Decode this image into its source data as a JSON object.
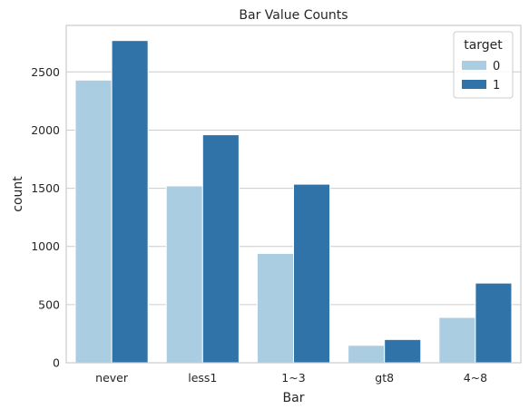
{
  "chart_data": {
    "type": "bar",
    "title": "Bar Value Counts",
    "xlabel": "Bar",
    "ylabel": "count",
    "categories": [
      "never",
      "less1",
      "1~3",
      "gt8",
      "4~8"
    ],
    "series": [
      {
        "name": "0",
        "values": [
          2430,
          1520,
          940,
          150,
          390
        ],
        "color": "#abcde2"
      },
      {
        "name": "1",
        "values": [
          2770,
          1960,
          1535,
          200,
          685
        ],
        "color": "#2f73a8"
      }
    ],
    "ylim": [
      0,
      2900
    ],
    "yticks": [
      0,
      500,
      1000,
      1500,
      2000,
      2500
    ],
    "grid": true,
    "legend": {
      "title": "target",
      "position": "top-right"
    }
  }
}
